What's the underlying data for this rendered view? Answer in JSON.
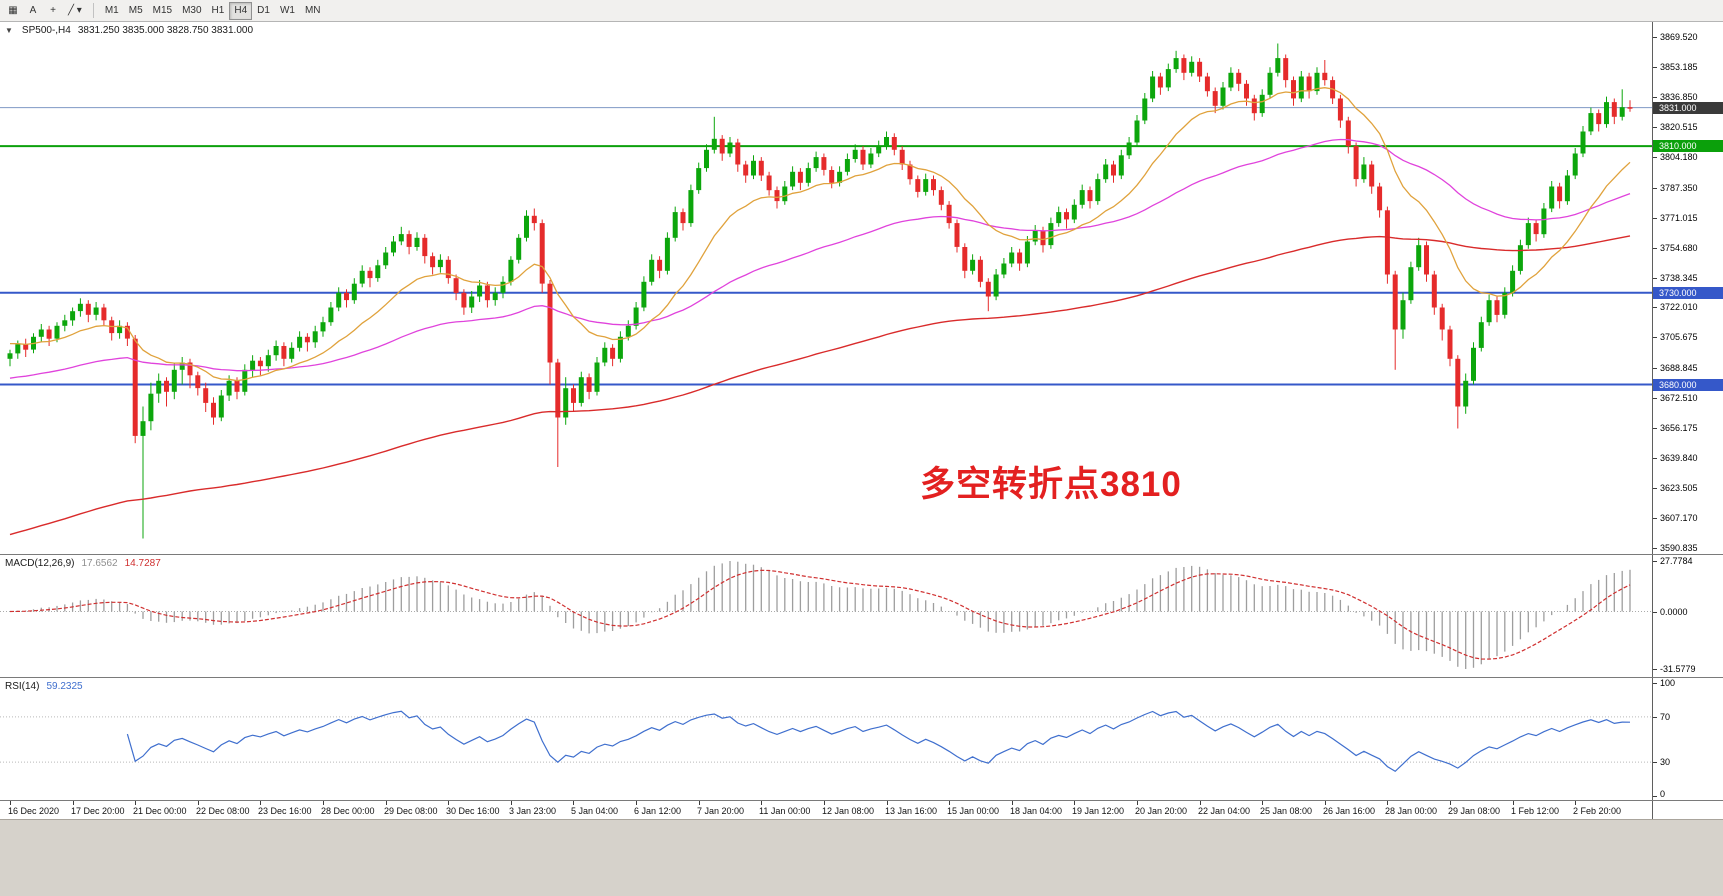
{
  "toolbar": {
    "icons": [
      {
        "name": "chart-window-icon",
        "glyph": "▦"
      },
      {
        "name": "cursor-icon",
        "glyph": "A"
      },
      {
        "name": "crosshair-icon",
        "glyph": "+"
      },
      {
        "name": "line-studies-icon",
        "glyph": "╱ ▾"
      }
    ],
    "timeframes": [
      "M1",
      "M5",
      "M15",
      "M30",
      "H1",
      "H4",
      "D1",
      "W1",
      "MN"
    ],
    "active_timeframe": "H4"
  },
  "chart": {
    "collapse_glyph": "▼",
    "symbol_period": "SP500-,H4",
    "ohlc_text": "3831.250 3835.000 3828.750 3831.000",
    "annotation": "多空转折点3810",
    "annotation_color": "#e32020",
    "price_axis_labels": [
      "3869.520",
      "3853.185",
      "3836.850",
      "3820.515",
      "3804.180",
      "3787.350",
      "3771.015",
      "3754.680",
      "3738.345",
      "3722.010",
      "3705.675",
      "3688.845",
      "3672.510",
      "3656.175",
      "3639.840",
      "3623.505",
      "3607.170",
      "3590.835"
    ],
    "price_badges": [
      {
        "value": "3831.000",
        "price": 3831.0,
        "color": "#3a3a3a"
      },
      {
        "value": "3810.000",
        "price": 3810.0,
        "color": "#0ba00b"
      },
      {
        "value": "3730.000",
        "price": 3730.0,
        "color": "#3558c9"
      },
      {
        "value": "3680.000",
        "price": 3680.0,
        "color": "#3558c9"
      }
    ],
    "horizontal_lines": [
      {
        "price": 3831.0,
        "color": "#7f98c4",
        "width": 1
      },
      {
        "price": 3810.0,
        "color": "#0ba00b",
        "width": 2
      },
      {
        "price": 3730.0,
        "color": "#3558c9",
        "width": 2
      },
      {
        "price": 3680.0,
        "color": "#3558c9",
        "width": 2
      }
    ],
    "ma_colors": {
      "fast": "#e0a23c",
      "medium": "#e043dc",
      "slow": "#d92b2b"
    },
    "candle_colors": {
      "up": "#0ca60c",
      "down": "#e52b2b"
    },
    "time_axis_labels": [
      "16 Dec 2020",
      "17 Dec 20:00",
      "21 Dec 00:00",
      "22 Dec 08:00",
      "23 Dec 16:00",
      "28 Dec 00:00",
      "29 Dec 08:00",
      "30 Dec 16:00",
      "3 Jan 23:00",
      "5 Jan 04:00",
      "6 Jan 12:00",
      "7 Jan 20:00",
      "11 Jan 00:00",
      "12 Jan 08:00",
      "13 Jan 16:00",
      "15 Jan 00:00",
      "18 Jan 04:00",
      "19 Jan 12:00",
      "20 Jan 20:00",
      "22 Jan 04:00",
      "25 Jan 08:00",
      "26 Jan 16:00",
      "28 Jan 00:00",
      "29 Jan 08:00",
      "1 Feb 12:00",
      "2 Feb 20:00"
    ]
  },
  "macd": {
    "title": "MACD(12,26,9)",
    "value_main": "17.6562",
    "value_signal": "14.7287",
    "axis_labels": [
      "27.7784",
      "0.0000",
      "-31.5779"
    ]
  },
  "rsi": {
    "title": "RSI(14)",
    "value": "59.2325",
    "axis_labels": [
      "100",
      "70",
      "30",
      "0"
    ],
    "levels": [
      70,
      30
    ]
  },
  "chart_data": {
    "type": "candlestick",
    "title": "SP500-,H4",
    "symbol": "SP500-",
    "period": "H4",
    "ylim": [
      3590.835,
      3869.52
    ],
    "candles": [
      [
        3694,
        3699,
        3690,
        3697
      ],
      [
        3697,
        3704,
        3694,
        3702
      ],
      [
        3702,
        3705,
        3695,
        3699
      ],
      [
        3699,
        3708,
        3697,
        3706
      ],
      [
        3706,
        3713,
        3703,
        3710
      ],
      [
        3710,
        3712,
        3701,
        3705
      ],
      [
        3705,
        3714,
        3703,
        3712
      ],
      [
        3712,
        3718,
        3709,
        3715
      ],
      [
        3715,
        3722,
        3712,
        3720
      ],
      [
        3720,
        3727,
        3717,
        3724
      ],
      [
        3724,
        3726,
        3714,
        3718
      ],
      [
        3718,
        3725,
        3715,
        3722
      ],
      [
        3722,
        3724,
        3712,
        3715
      ],
      [
        3715,
        3717,
        3704,
        3708
      ],
      [
        3708,
        3715,
        3705,
        3712
      ],
      [
        3712,
        3714,
        3701,
        3705
      ],
      [
        3705,
        3707,
        3648,
        3652
      ],
      [
        3652,
        3668,
        3596,
        3660
      ],
      [
        3660,
        3681,
        3655,
        3675
      ],
      [
        3675,
        3686,
        3670,
        3682
      ],
      [
        3682,
        3684,
        3668,
        3676
      ],
      [
        3676,
        3692,
        3672,
        3688
      ],
      [
        3688,
        3695,
        3680,
        3692
      ],
      [
        3692,
        3694,
        3678,
        3685
      ],
      [
        3685,
        3687,
        3674,
        3678
      ],
      [
        3678,
        3681,
        3665,
        3670
      ],
      [
        3670,
        3673,
        3658,
        3662
      ],
      [
        3662,
        3677,
        3660,
        3674
      ],
      [
        3674,
        3685,
        3671,
        3682
      ],
      [
        3682,
        3684,
        3672,
        3676
      ],
      [
        3676,
        3691,
        3674,
        3688
      ],
      [
        3688,
        3696,
        3684,
        3693
      ],
      [
        3693,
        3695,
        3685,
        3690
      ],
      [
        3690,
        3699,
        3687,
        3696
      ],
      [
        3696,
        3704,
        3693,
        3701
      ],
      [
        3701,
        3703,
        3690,
        3694
      ],
      [
        3694,
        3703,
        3692,
        3700
      ],
      [
        3700,
        3709,
        3698,
        3706
      ],
      [
        3706,
        3708,
        3698,
        3703
      ],
      [
        3703,
        3712,
        3700,
        3709
      ],
      [
        3709,
        3717,
        3706,
        3714
      ],
      [
        3714,
        3725,
        3712,
        3722
      ],
      [
        3722,
        3733,
        3720,
        3730
      ],
      [
        3730,
        3732,
        3722,
        3726
      ],
      [
        3726,
        3738,
        3724,
        3735
      ],
      [
        3735,
        3745,
        3733,
        3742
      ],
      [
        3742,
        3744,
        3733,
        3738
      ],
      [
        3738,
        3748,
        3736,
        3745
      ],
      [
        3745,
        3755,
        3743,
        3752
      ],
      [
        3752,
        3761,
        3750,
        3758
      ],
      [
        3758,
        3766,
        3756,
        3762
      ],
      [
        3762,
        3764,
        3751,
        3755
      ],
      [
        3755,
        3763,
        3753,
        3760
      ],
      [
        3760,
        3762,
        3746,
        3750
      ],
      [
        3750,
        3752,
        3740,
        3744
      ],
      [
        3744,
        3751,
        3741,
        3748
      ],
      [
        3748,
        3750,
        3735,
        3738
      ],
      [
        3738,
        3740,
        3726,
        3730
      ],
      [
        3730,
        3732,
        3718,
        3722
      ],
      [
        3722,
        3731,
        3719,
        3728
      ],
      [
        3728,
        3737,
        3725,
        3734
      ],
      [
        3734,
        3736,
        3722,
        3726
      ],
      [
        3726,
        3733,
        3723,
        3730
      ],
      [
        3730,
        3739,
        3727,
        3736
      ],
      [
        3736,
        3750,
        3734,
        3748
      ],
      [
        3748,
        3762,
        3746,
        3760
      ],
      [
        3760,
        3775,
        3758,
        3772
      ],
      [
        3772,
        3776,
        3764,
        3768
      ],
      [
        3768,
        3770,
        3730,
        3735
      ],
      [
        3735,
        3737,
        3680,
        3692
      ],
      [
        3692,
        3694,
        3635,
        3662
      ],
      [
        3662,
        3684,
        3658,
        3678
      ],
      [
        3678,
        3680,
        3665,
        3670
      ],
      [
        3670,
        3687,
        3668,
        3684
      ],
      [
        3684,
        3686,
        3672,
        3676
      ],
      [
        3676,
        3695,
        3674,
        3692
      ],
      [
        3692,
        3703,
        3690,
        3700
      ],
      [
        3700,
        3702,
        3690,
        3694
      ],
      [
        3694,
        3709,
        3692,
        3706
      ],
      [
        3706,
        3715,
        3704,
        3712
      ],
      [
        3712,
        3725,
        3710,
        3722
      ],
      [
        3722,
        3739,
        3720,
        3736
      ],
      [
        3736,
        3751,
        3734,
        3748
      ],
      [
        3748,
        3750,
        3738,
        3742
      ],
      [
        3742,
        3763,
        3740,
        3760
      ],
      [
        3760,
        3777,
        3758,
        3774
      ],
      [
        3774,
        3776,
        3764,
        3768
      ],
      [
        3768,
        3789,
        3766,
        3786
      ],
      [
        3786,
        3801,
        3784,
        3798
      ],
      [
        3798,
        3811,
        3796,
        3808
      ],
      [
        3808,
        3826,
        3806,
        3814
      ],
      [
        3814,
        3816,
        3802,
        3806
      ],
      [
        3806,
        3815,
        3804,
        3812
      ],
      [
        3812,
        3814,
        3796,
        3800
      ],
      [
        3800,
        3802,
        3790,
        3794
      ],
      [
        3794,
        3805,
        3792,
        3802
      ],
      [
        3802,
        3804,
        3791,
        3794
      ],
      [
        3794,
        3796,
        3783,
        3786
      ],
      [
        3786,
        3788,
        3776,
        3780
      ],
      [
        3780,
        3791,
        3778,
        3788
      ],
      [
        3788,
        3799,
        3786,
        3796
      ],
      [
        3796,
        3798,
        3786,
        3790
      ],
      [
        3790,
        3801,
        3788,
        3798
      ],
      [
        3798,
        3807,
        3796,
        3804
      ],
      [
        3804,
        3806,
        3794,
        3797
      ],
      [
        3797,
        3799,
        3787,
        3790
      ],
      [
        3790,
        3799,
        3788,
        3796
      ],
      [
        3796,
        3806,
        3794,
        3803
      ],
      [
        3803,
        3811,
        3801,
        3808
      ],
      [
        3808,
        3810,
        3797,
        3800
      ],
      [
        3800,
        3809,
        3798,
        3806
      ],
      [
        3806,
        3813,
        3804,
        3810
      ],
      [
        3810,
        3818,
        3808,
        3815
      ],
      [
        3815,
        3817,
        3805,
        3808
      ],
      [
        3808,
        3810,
        3797,
        3800
      ],
      [
        3800,
        3802,
        3789,
        3792
      ],
      [
        3792,
        3794,
        3782,
        3785
      ],
      [
        3785,
        3795,
        3783,
        3792
      ],
      [
        3792,
        3794,
        3783,
        3786
      ],
      [
        3786,
        3788,
        3775,
        3778
      ],
      [
        3778,
        3780,
        3765,
        3768
      ],
      [
        3768,
        3770,
        3752,
        3755
      ],
      [
        3755,
        3757,
        3738,
        3742
      ],
      [
        3742,
        3751,
        3740,
        3748
      ],
      [
        3748,
        3750,
        3733,
        3736
      ],
      [
        3736,
        3738,
        3720,
        3728
      ],
      [
        3728,
        3743,
        3726,
        3740
      ],
      [
        3740,
        3749,
        3738,
        3746
      ],
      [
        3746,
        3755,
        3744,
        3752
      ],
      [
        3752,
        3754,
        3742,
        3746
      ],
      [
        3746,
        3761,
        3744,
        3758
      ],
      [
        3758,
        3767,
        3756,
        3764
      ],
      [
        3764,
        3766,
        3752,
        3756
      ],
      [
        3756,
        3771,
        3754,
        3768
      ],
      [
        3768,
        3777,
        3766,
        3774
      ],
      [
        3774,
        3776,
        3765,
        3770
      ],
      [
        3770,
        3781,
        3768,
        3778
      ],
      [
        3778,
        3789,
        3776,
        3786
      ],
      [
        3786,
        3788,
        3776,
        3780
      ],
      [
        3780,
        3795,
        3778,
        3792
      ],
      [
        3792,
        3803,
        3790,
        3800
      ],
      [
        3800,
        3802,
        3790,
        3794
      ],
      [
        3794,
        3808,
        3792,
        3805
      ],
      [
        3805,
        3815,
        3803,
        3812
      ],
      [
        3812,
        3827,
        3810,
        3824
      ],
      [
        3824,
        3839,
        3822,
        3836
      ],
      [
        3836,
        3851,
        3834,
        3848
      ],
      [
        3848,
        3850,
        3838,
        3842
      ],
      [
        3842,
        3855,
        3840,
        3852
      ],
      [
        3852,
        3862,
        3850,
        3858
      ],
      [
        3858,
        3860,
        3846,
        3850
      ],
      [
        3850,
        3859,
        3848,
        3856
      ],
      [
        3856,
        3858,
        3845,
        3848
      ],
      [
        3848,
        3850,
        3837,
        3840
      ],
      [
        3840,
        3842,
        3828,
        3832
      ],
      [
        3832,
        3845,
        3830,
        3842
      ],
      [
        3842,
        3853,
        3840,
        3850
      ],
      [
        3850,
        3852,
        3840,
        3844
      ],
      [
        3844,
        3846,
        3832,
        3836
      ],
      [
        3836,
        3838,
        3824,
        3828
      ],
      [
        3828,
        3841,
        3826,
        3838
      ],
      [
        3838,
        3853,
        3836,
        3850
      ],
      [
        3850,
        3866,
        3848,
        3858
      ],
      [
        3858,
        3860,
        3842,
        3846
      ],
      [
        3846,
        3848,
        3832,
        3836
      ],
      [
        3836,
        3851,
        3834,
        3848
      ],
      [
        3848,
        3850,
        3836,
        3840
      ],
      [
        3840,
        3853,
        3838,
        3850
      ],
      [
        3850,
        3857,
        3843,
        3846
      ],
      [
        3846,
        3848,
        3833,
        3836
      ],
      [
        3836,
        3838,
        3820,
        3824
      ],
      [
        3824,
        3826,
        3806,
        3810
      ],
      [
        3810,
        3812,
        3788,
        3792
      ],
      [
        3792,
        3804,
        3790,
        3800
      ],
      [
        3800,
        3802,
        3784,
        3788
      ],
      [
        3788,
        3790,
        3771,
        3775
      ],
      [
        3775,
        3777,
        3735,
        3740
      ],
      [
        3740,
        3742,
        3688,
        3710
      ],
      [
        3710,
        3730,
        3705,
        3726
      ],
      [
        3726,
        3747,
        3724,
        3744
      ],
      [
        3744,
        3760,
        3742,
        3756
      ],
      [
        3756,
        3758,
        3736,
        3740
      ],
      [
        3740,
        3742,
        3718,
        3722
      ],
      [
        3722,
        3724,
        3704,
        3710
      ],
      [
        3710,
        3712,
        3690,
        3694
      ],
      [
        3694,
        3696,
        3656,
        3668
      ],
      [
        3668,
        3686,
        3664,
        3682
      ],
      [
        3682,
        3703,
        3680,
        3700
      ],
      [
        3700,
        3717,
        3698,
        3714
      ],
      [
        3714,
        3729,
        3712,
        3726
      ],
      [
        3726,
        3728,
        3714,
        3718
      ],
      [
        3718,
        3733,
        3716,
        3730
      ],
      [
        3730,
        3745,
        3728,
        3742
      ],
      [
        3742,
        3759,
        3740,
        3756
      ],
      [
        3756,
        3771,
        3754,
        3768
      ],
      [
        3768,
        3770,
        3758,
        3762
      ],
      [
        3762,
        3779,
        3760,
        3776
      ],
      [
        3776,
        3791,
        3774,
        3788
      ],
      [
        3788,
        3790,
        3776,
        3780
      ],
      [
        3780,
        3797,
        3778,
        3794
      ],
      [
        3794,
        3809,
        3792,
        3806
      ],
      [
        3806,
        3821,
        3804,
        3818
      ],
      [
        3818,
        3831,
        3816,
        3828
      ],
      [
        3828,
        3830,
        3818,
        3822
      ],
      [
        3822,
        3837,
        3820,
        3834
      ],
      [
        3834,
        3836,
        3822,
        3826
      ],
      [
        3826,
        3841,
        3824,
        3831.25
      ],
      [
        3831.25,
        3835,
        3828.75,
        3831
      ]
    ]
  }
}
